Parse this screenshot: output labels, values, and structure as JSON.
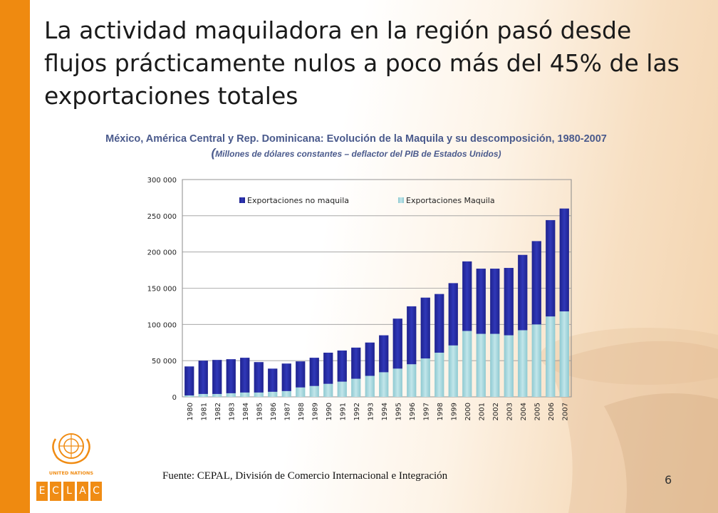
{
  "slide": {
    "title": "La actividad maquiladora en la región pasó desde flujos prácticamente nulos a poco más del 45% de las exportaciones totales",
    "chart_title": "México, América Central y Rep. Dominicana: Evolución de la Maquila y su descomposición, 1980-2007",
    "chart_subtitle_open": "(",
    "chart_subtitle": "Millones de dólares constantes – deflactor del PIB de Estados Unidos)",
    "source": "Fuente: CEPAL, División de Comercio Internacional e Integración",
    "page_number": "6",
    "logo_text": "UNITED NATIONS",
    "eclac_letters": [
      "E",
      "C",
      "L",
      "A",
      "C"
    ],
    "colors": {
      "accent_bar": "#ef8a10",
      "no_maquila": "#2a2fa8",
      "maquila": "#a8d6dc",
      "title_blue": "#4a5a8c"
    }
  },
  "chart_data": {
    "type": "bar",
    "stacked": true,
    "categories": [
      "1980",
      "1981",
      "1982",
      "1983",
      "1984",
      "1985",
      "1986",
      "1987",
      "1988",
      "1989",
      "1990",
      "1991",
      "1992",
      "1993",
      "1994",
      "1995",
      "1996",
      "1997",
      "1998",
      "1999",
      "2000",
      "2001",
      "2002",
      "2003",
      "2004",
      "2005",
      "2006",
      "2007"
    ],
    "series": [
      {
        "name": "Exportaciones Maquila",
        "color": "#a8d6dc",
        "values": [
          2000,
          4000,
          4000,
          5000,
          6000,
          6000,
          7000,
          8000,
          13000,
          15000,
          18000,
          21000,
          25000,
          29000,
          34000,
          39000,
          45000,
          53000,
          61000,
          71000,
          91000,
          87000,
          87000,
          85000,
          92000,
          100000,
          111000,
          118000
        ]
      },
      {
        "name": "Exportaciones no maquila",
        "color": "#2a2fa8",
        "values": [
          40000,
          46000,
          47000,
          47000,
          48000,
          42000,
          32000,
          38000,
          36000,
          39000,
          43000,
          43000,
          43000,
          46000,
          51000,
          69000,
          80000,
          84000,
          81000,
          86000,
          96000,
          90000,
          90000,
          93000,
          104000,
          115000,
          133000,
          142000
        ]
      }
    ],
    "ylim": [
      0,
      300000
    ],
    "yticks": [
      "0",
      "50 000",
      "100 000",
      "150 000",
      "200 000",
      "250 000",
      "300 000"
    ],
    "ytick_values": [
      0,
      50000,
      100000,
      150000,
      200000,
      250000,
      300000
    ],
    "legend_order": [
      "Exportaciones no maquila",
      "Exportaciones Maquila"
    ],
    "legend_position": "top",
    "grid": true
  }
}
